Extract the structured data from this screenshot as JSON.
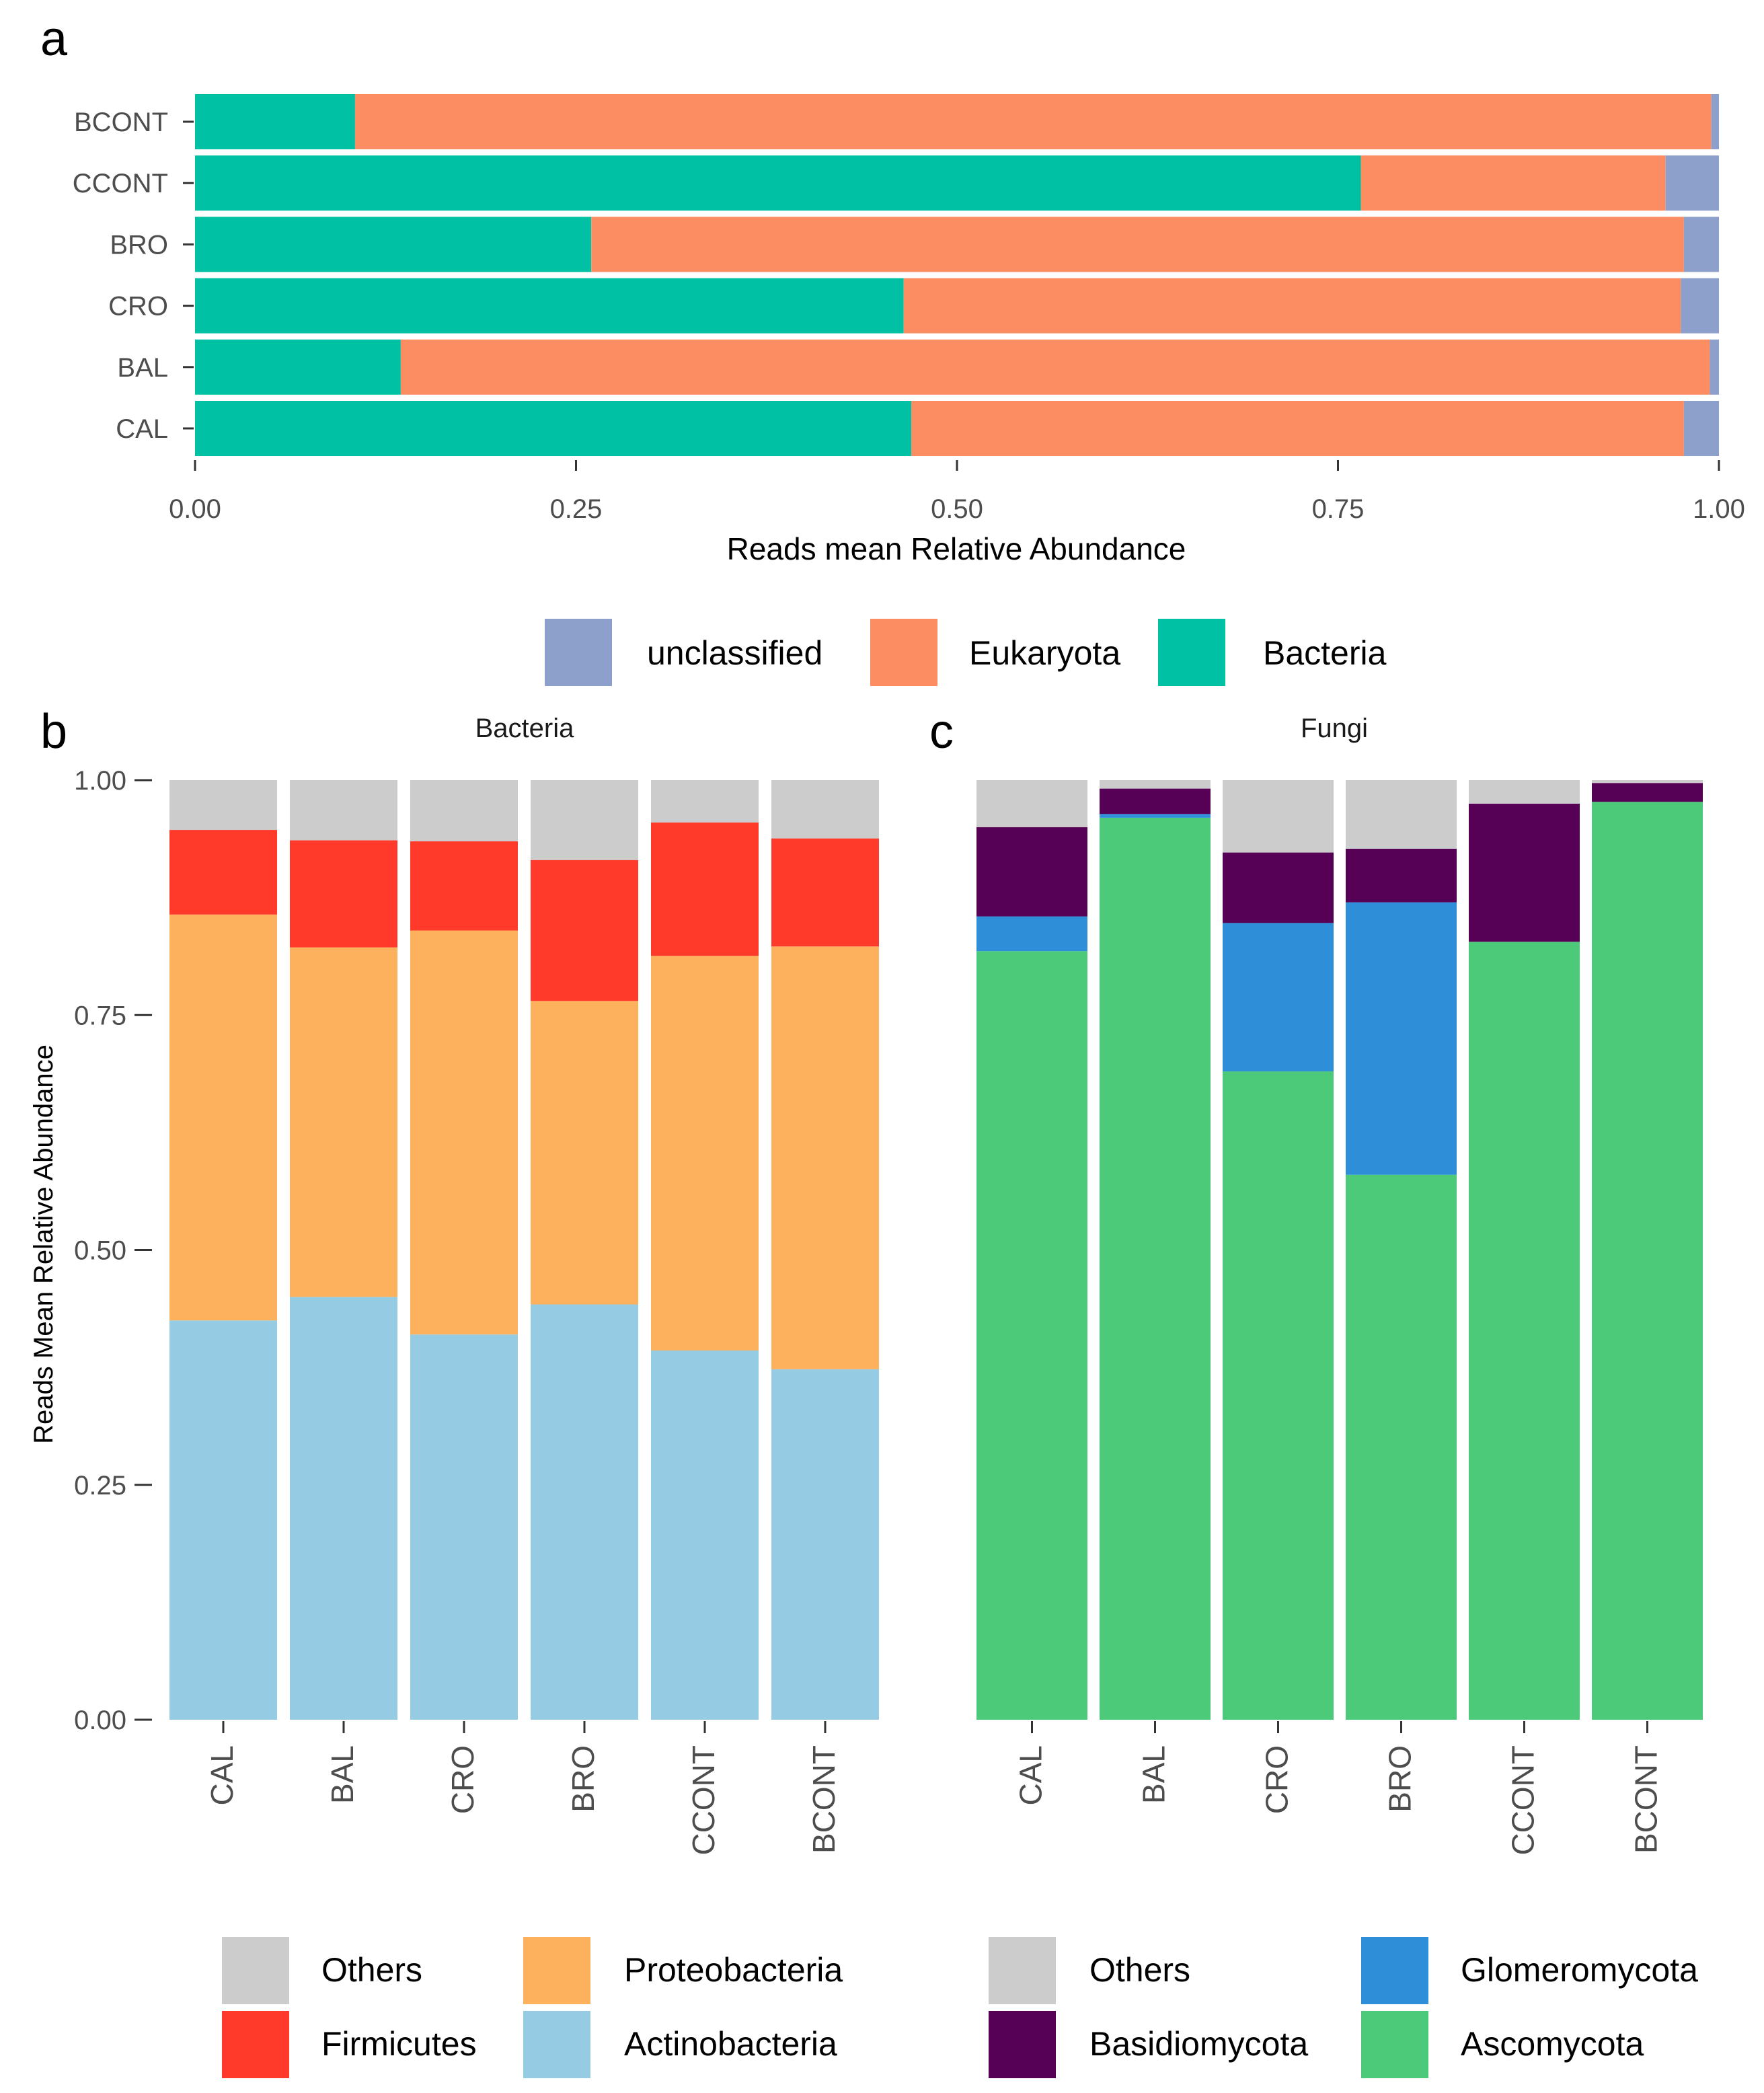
{
  "panels": {
    "a": "a",
    "b": "b",
    "c": "c"
  },
  "chart_data": [
    {
      "type": "bar",
      "orientation": "horizontal",
      "stacked": true,
      "panel": "a",
      "categories": [
        "BCONT",
        "CCONT",
        "BRO",
        "CRO",
        "BAL",
        "CAL"
      ],
      "series": [
        {
          "name": "Bacteria",
          "color": "#00C1A3",
          "values": [
            0.105,
            0.765,
            0.26,
            0.465,
            0.135,
            0.47
          ]
        },
        {
          "name": "Eukaryota",
          "color": "#FC8D62",
          "values": [
            0.89,
            0.2,
            0.717,
            0.51,
            0.859,
            0.507
          ]
        },
        {
          "name": "unclassified",
          "color": "#8DA0CB",
          "values": [
            0.005,
            0.035,
            0.023,
            0.025,
            0.006,
            0.023
          ]
        }
      ],
      "xlabel": "Reads mean Relative Abundance",
      "xlim": [
        0,
        1
      ],
      "xticks": [
        "0.00",
        "0.25",
        "0.50",
        "0.75",
        "1.00"
      ],
      "legend": {
        "position": "bottom",
        "entries": [
          "unclassified",
          "Eukaryota",
          "Bacteria"
        ]
      }
    },
    {
      "type": "bar",
      "orientation": "vertical",
      "stacked": true,
      "panel": "b",
      "title": "Bacteria",
      "categories": [
        "CAL",
        "BAL",
        "CRO",
        "BRO",
        "CCONT",
        "BCONT"
      ],
      "series": [
        {
          "name": "Actinobacteria",
          "color": "#95CCE3",
          "values": [
            0.425,
            0.45,
            0.41,
            0.442,
            0.393,
            0.373
          ]
        },
        {
          "name": "Proteobacteria",
          "color": "#FDB15D",
          "values": [
            0.432,
            0.372,
            0.43,
            0.323,
            0.42,
            0.45
          ]
        },
        {
          "name": "Firmicutes",
          "color": "#FF3A2B",
          "values": [
            0.09,
            0.114,
            0.095,
            0.15,
            0.142,
            0.115
          ]
        },
        {
          "name": "Others",
          "color": "#CCCCCC",
          "values": [
            0.053,
            0.064,
            0.065,
            0.085,
            0.045,
            0.062
          ]
        }
      ],
      "ylabel": "Reads Mean Relative Abundance",
      "ylim": [
        0,
        1
      ],
      "yticks": [
        "0.00",
        "0.25",
        "0.50",
        "0.75",
        "1.00"
      ],
      "legend": {
        "position": "bottom",
        "entries": [
          "Others",
          "Proteobacteria",
          "Firmicutes",
          "Actinobacteria"
        ]
      }
    },
    {
      "type": "bar",
      "orientation": "vertical",
      "stacked": true,
      "panel": "c",
      "title": "Fungi",
      "categories": [
        "CAL",
        "BAL",
        "CRO",
        "BRO",
        "CCONT",
        "BCONT"
      ],
      "series": [
        {
          "name": "Ascomycota",
          "color": "#4CC979",
          "values": [
            0.818,
            0.96,
            0.69,
            0.58,
            0.828,
            0.977
          ]
        },
        {
          "name": "Glomeromycota",
          "color": "#2E8FD8",
          "values": [
            0.037,
            0.004,
            0.158,
            0.29,
            0,
            0
          ]
        },
        {
          "name": "Basidiomycota",
          "color": "#560056",
          "values": [
            0.095,
            0.027,
            0.075,
            0.057,
            0.147,
            0.02
          ]
        },
        {
          "name": "Others",
          "color": "#CCCCCC",
          "values": [
            0.05,
            0.009,
            0.077,
            0.073,
            0.025,
            0.003
          ]
        }
      ],
      "legend": {
        "position": "bottom",
        "entries": [
          "Others",
          "Glomeromycota",
          "Basidiomycota",
          "Ascomycota"
        ]
      }
    }
  ]
}
